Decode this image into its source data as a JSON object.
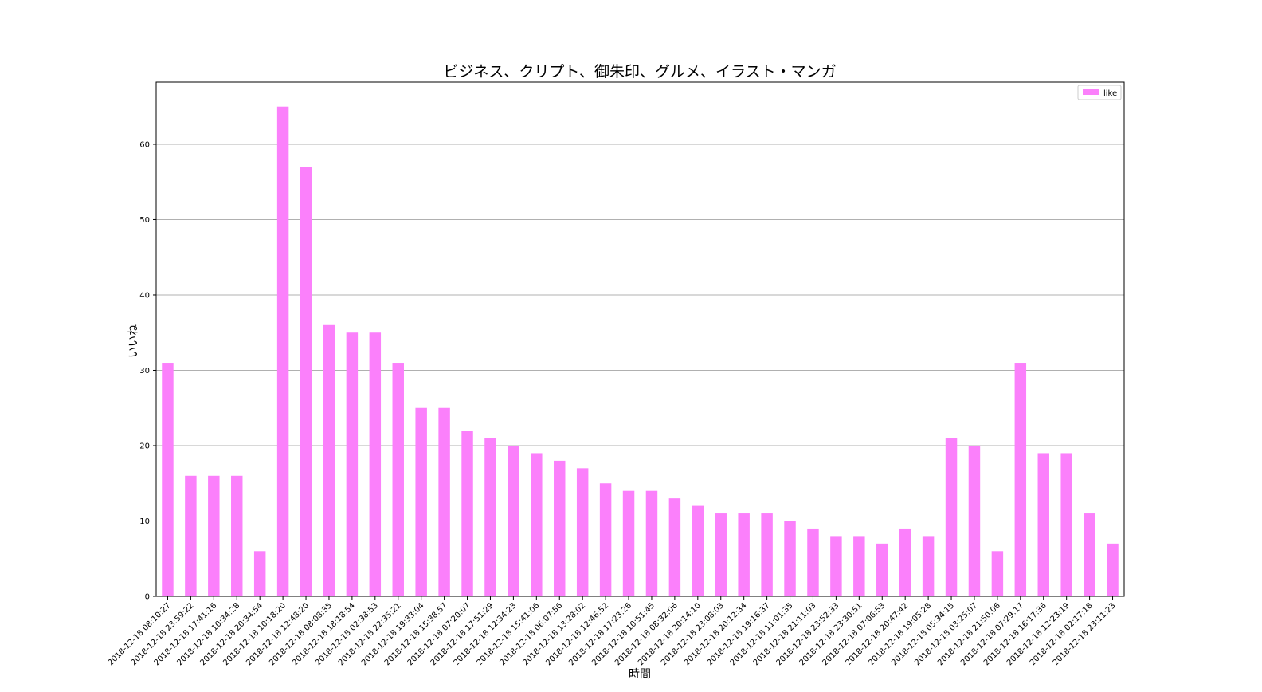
{
  "chart_data": {
    "type": "bar",
    "title": "ビジネス、クリプト、御朱印、グルメ、イラスト・マンガ",
    "x_label": "時間",
    "y_label": "いいね",
    "categories": [
      "2018-12-18 08:10:27",
      "2018-12-18 23:59:22",
      "2018-12-18 17:41:16",
      "2018-12-18 10:34:28",
      "2018-12-18 20:34:54",
      "2018-12-18 10:18:20",
      "2018-12-18 12:48:20",
      "2018-12-18 08:08:35",
      "2018-12-18 18:18:54",
      "2018-12-18 02:38:53",
      "2018-12-18 22:35:21",
      "2018-12-18 19:33:04",
      "2018-12-18 15:38:57",
      "2018-12-18 07:20:07",
      "2018-12-18 17:51:29",
      "2018-12-18 12:34:23",
      "2018-12-18 15:41:06",
      "2018-12-18 06:07:56",
      "2018-12-18 13:28:02",
      "2018-12-18 12:46:52",
      "2018-12-18 17:23:26",
      "2018-12-18 10:51:45",
      "2018-12-18 08:32:06",
      "2018-12-18 20:14:10",
      "2018-12-18 23:08:03",
      "2018-12-18 20:12:34",
      "2018-12-18 19:16:37",
      "2018-12-18 11:01:35",
      "2018-12-18 21:11:03",
      "2018-12-18 23:52:33",
      "2018-12-18 23:30:51",
      "2018-12-18 07:06:53",
      "2018-12-18 20:47:42",
      "2018-12-18 19:05:28",
      "2018-12-18 05:34:15",
      "2018-12-18 03:25:07",
      "2018-12-18 21:50:06",
      "2018-12-18 07:29:17",
      "2018-12-18 16:17:36",
      "2018-12-18 12:23:19",
      "2018-12-18 02:17:18",
      "2018-12-18 23:11:23"
    ],
    "series": [
      {
        "name": "like",
        "color": "#fb80fb",
        "values": [
          31,
          16,
          16,
          16,
          6,
          65,
          57,
          36,
          35,
          35,
          31,
          25,
          25,
          22,
          21,
          20,
          19,
          18,
          17,
          15,
          14,
          14,
          13,
          12,
          11,
          11,
          11,
          10,
          9,
          8,
          8,
          7,
          9,
          8,
          21,
          20,
          6,
          31,
          19,
          19,
          11,
          7
        ]
      }
    ],
    "ylim": [
      0,
      68.25
    ],
    "yticks": [
      0,
      10,
      20,
      30,
      40,
      50,
      60
    ],
    "grid": true,
    "legend": "upper right"
  }
}
